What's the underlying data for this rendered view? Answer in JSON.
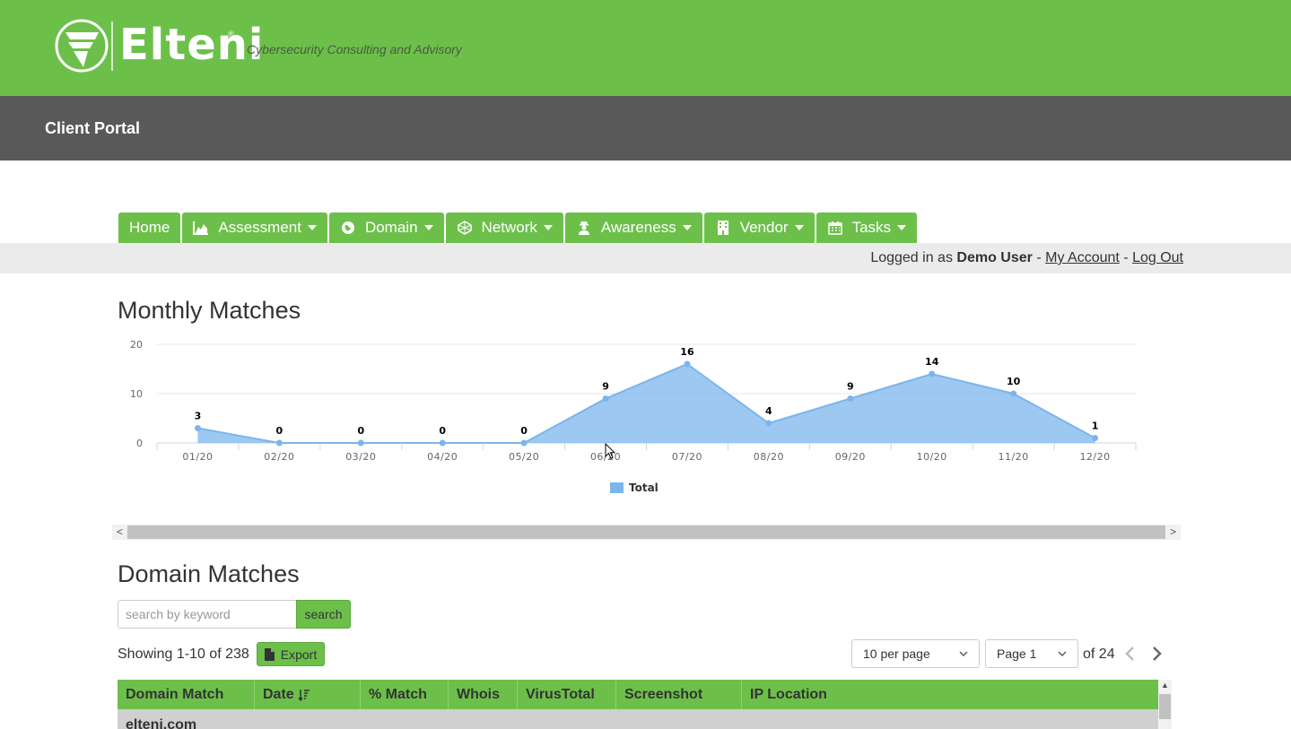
{
  "header": {
    "brand": "Elteni",
    "reg_mark": "®",
    "tagline": "Cybersecurity Consulting and Advisory",
    "bg_color": "#6cc04a"
  },
  "subheader": {
    "title": "Client Portal",
    "bg_color": "#595959"
  },
  "nav": [
    {
      "label": "Home",
      "icon": "",
      "dropdown": false
    },
    {
      "label": "Assessment",
      "icon": "area-chart-icon",
      "dropdown": true
    },
    {
      "label": "Domain",
      "icon": "globe-icon",
      "dropdown": true
    },
    {
      "label": "Network",
      "icon": "network-icon",
      "dropdown": true
    },
    {
      "label": "Awareness",
      "icon": "user-secret-icon",
      "dropdown": true
    },
    {
      "label": "Vendor",
      "icon": "building-icon",
      "dropdown": true
    },
    {
      "label": "Tasks",
      "icon": "calendar-icon",
      "dropdown": true
    }
  ],
  "login": {
    "prefix": "Logged in as",
    "user": "Demo User",
    "sep1": "-",
    "account": "My Account",
    "sep2": "-",
    "logout": "Log Out"
  },
  "monthly": {
    "title": "Monthly Matches"
  },
  "chart_data": {
    "type": "area",
    "title": "Monthly Matches",
    "categories": [
      "01/20",
      "02/20",
      "03/20",
      "04/20",
      "05/20",
      "06/20",
      "07/20",
      "08/20",
      "09/20",
      "10/20",
      "11/20",
      "12/20"
    ],
    "series": [
      {
        "name": "Total",
        "values": [
          3,
          0,
          0,
          0,
          0,
          9,
          16,
          4,
          9,
          14,
          10,
          1
        ],
        "color": "#7cb5ec"
      }
    ],
    "yticks": [
      0,
      10,
      20
    ],
    "ylim": [
      0,
      20
    ],
    "grid": true,
    "legend": "bottom-center",
    "data_labels": true
  },
  "domain": {
    "title": "Domain Matches",
    "search_placeholder": "search by keyword",
    "search_button": "search",
    "showing": "Showing 1-10 of 238",
    "export_label": "Export",
    "per_page": "10 per page",
    "page": "Page 1",
    "of_pages": "of 24",
    "columns": [
      "Domain Match",
      "Date",
      "% Match",
      "Whois",
      "VirusTotal",
      "Screenshot",
      "IP Location"
    ],
    "sorted_column": "Date",
    "sort_icon": "sort-amount-down-icon",
    "rows": [
      {
        "domain": "elteni.com"
      }
    ]
  },
  "scrollbar": {
    "left_arrow": "<",
    "right_arrow": ">",
    "up_arrow": "▲"
  }
}
